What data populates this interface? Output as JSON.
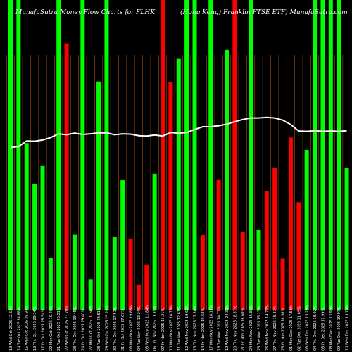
{
  "header": {
    "title": "MunafaSutra  Money Flow  Charts for FLHK",
    "subtitle": "(Hong Kong) Franklin FTSE ETF) MunafaSutra.com"
  },
  "colors": {
    "up": "#00ff00",
    "down": "#ff0000",
    "grid": "#8b4513",
    "line": "#ffffff",
    "background": "#000000"
  },
  "chart_data": {
    "type": "bar",
    "ylim": [
      0,
      100
    ],
    "grid": "vertical",
    "categories": [
      "13 Wed Oct 2025 12.63%",
      "14 Tue Oct 2025 34.88%",
      "15 Wed Oct 2025 28.84%",
      "16 Thu Oct 2025 29.34%",
      "17 Fri Oct 2025 28.54%",
      "20 Mon Oct 2025 10.26%",
      "21 Tue Oct 2025 25.51%",
      "22 Wed Oct 2025 23.70%",
      "23 Thu Oct 2025 19.45%",
      "24 Fri Oct 2025 29.40%",
      "27 Mon Oct 2025 10.66%",
      "28 Tue Oct 2025 23.51%",
      "29 Wed Oct 2025 25.24%",
      "30 Thu Oct 2025 17.51%",
      "31 Fri Oct 2025 27.67%",
      "03 Mon Nov 2025 19.86%",
      "04 Tue Nov 2025 13.24%",
      "05 Wed Nov 2025 11.84%",
      "06 Thu Nov 2025 11.35%",
      "07 Fri Nov 2025 13.21%",
      "10 Mon Nov 2025 18.79%",
      "11 Tue Nov 2025 12.61%",
      "12 Wed Nov 2025 19.60%",
      "13 Thu Nov 2025 17.80%",
      "14 Fri Nov 2025 19.58%",
      "17 Mon Nov 2025 18.17%",
      "18 Tue Nov 2025 14.71%",
      "19 Wed Nov 2025 24.30%",
      "20 Thu Nov 2025 18.67%",
      "21 Fri Nov 2025 16.60%",
      "24 Mon Nov 2025 15.85%",
      "25 Tue Nov 2025 15.23%",
      "26 Wed Nov 2025 14.77%",
      "27 Thu Nov 2025 15.33%",
      "28 Fri Nov 2025 16.56%",
      "01 Mon Dec 2025 17.58%",
      "02 Tue Dec 2025 11.69%",
      "03 Wed Dec 2025 15.28%",
      "04 Thu Dec 2025 18.92%",
      "05 Fri Dec 2025 17.99%",
      "08 Mon Dec 2025 13.90%",
      "09 Tue Dec 2025 19.97%",
      "10 Wed Dec 2025 13.74%"
    ],
    "series": [
      {
        "values": [
          100,
          100,
          53.8,
          40.7,
          46.4,
          16.6,
          100,
          86.0,
          24.2,
          100,
          9.7,
          73.7,
          100,
          23.4,
          41.8,
          23.0,
          8.0,
          14.6,
          43.9,
          100,
          73.4,
          81.0,
          100,
          100,
          24.1,
          100,
          42.1,
          83.9,
          100,
          25.2,
          100,
          25.7,
          38.3,
          45.8,
          16.5,
          55.6,
          34.7,
          51.6,
          100,
          100,
          100,
          100,
          45.7
        ],
        "directions": [
          "up",
          "up",
          "up",
          "up",
          "up",
          "up",
          "up",
          "down",
          "up",
          "up",
          "up",
          "up",
          "up",
          "up",
          "up",
          "down",
          "down",
          "down",
          "up",
          "down",
          "down",
          "up",
          "up",
          "up",
          "down",
          "up",
          "down",
          "up",
          "down",
          "down",
          "up",
          "up",
          "down",
          "down",
          "down",
          "down",
          "down",
          "up",
          "up",
          "up",
          "up",
          "up",
          "up"
        ]
      },
      {
        "values": [
          52.4,
          52.7,
          54.5,
          54.4,
          54.8,
          55.6,
          56.8,
          56.5,
          57.0,
          56.6,
          56.8,
          57.1,
          57.1,
          56.5,
          56.8,
          56.7,
          56.2,
          56.1,
          56.4,
          56.1,
          57.2,
          57.0,
          57.2,
          58.2,
          59.1,
          59.1,
          59.4,
          59.9,
          60.7,
          61.4,
          61.9,
          61.9,
          62.1,
          61.9,
          61.2,
          59.8,
          57.7,
          57.6,
          57.8,
          57.6,
          57.7,
          57.6,
          57.8
        ]
      }
    ]
  }
}
